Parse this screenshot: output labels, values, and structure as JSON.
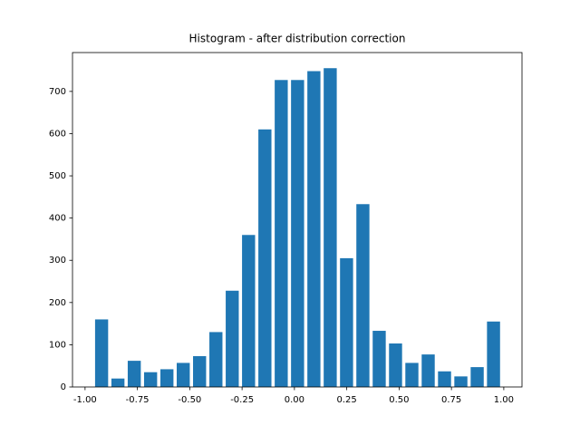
{
  "chart_data": {
    "type": "histogram",
    "title": "Histogram - after distribution correction",
    "bins": [
      -0.96,
      -0.882,
      -0.804,
      -0.726,
      -0.648,
      -0.57,
      -0.492,
      -0.414,
      -0.336,
      -0.258,
      -0.18,
      -0.102,
      -0.024,
      0.054,
      0.132,
      0.21,
      0.288,
      0.366,
      0.444,
      0.522,
      0.6,
      0.678,
      0.756,
      0.834,
      0.912,
      0.99
    ],
    "values": [
      160,
      20,
      62,
      35,
      42,
      57,
      73,
      130,
      228,
      360,
      610,
      727,
      727,
      748,
      755,
      305,
      433,
      133,
      103,
      57,
      77,
      37,
      25,
      47,
      155
    ],
    "color": "#1f77b4",
    "xlim": [
      -1.06,
      1.087
    ],
    "xticks": [
      {
        "value": -1,
        "label": "-1.00"
      },
      {
        "value": -0.75,
        "label": "-0.75"
      },
      {
        "value": -0.5,
        "label": "-0.50"
      },
      {
        "value": -0.25,
        "label": "-0.25"
      },
      {
        "value": 0,
        "label": "0.00"
      },
      {
        "value": 0.25,
        "label": "0.25"
      },
      {
        "value": 0.5,
        "label": "0.50"
      },
      {
        "value": 0.75,
        "label": "0.75"
      },
      {
        "value": 1,
        "label": "1.00"
      }
    ],
    "ylim": [
      0,
      792
    ],
    "yticks": [
      0,
      100,
      200,
      300,
      400,
      500,
      600,
      700
    ]
  }
}
